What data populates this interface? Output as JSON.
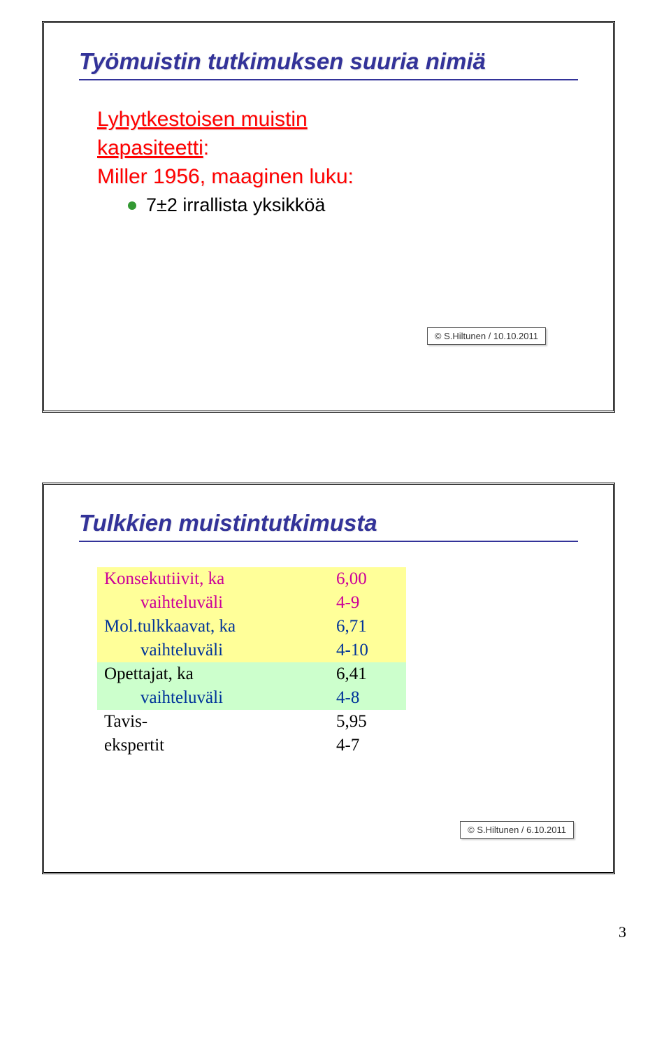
{
  "slide1": {
    "title": "Työmuistin tutkimuksen suuria nimiä",
    "subtitle_part1_underline": "Lyhytkestoisen muistin",
    "subtitle_part2_underline": "kapasiteetti",
    "subtitle_part2_tail": ":",
    "subline": "Miller 1956, maaginen luku:",
    "bullet": "7±2 irrallista yksikköä",
    "footer": "© S.Hiltunen / 10.10.2011"
  },
  "slide2": {
    "title": "Tulkkien muistintutkimusta",
    "rows": [
      {
        "label": "Konsekutiivit, ka",
        "value": "6,00",
        "color": "magenta",
        "bg": "bg-yellow",
        "indent": false
      },
      {
        "label": "vaihteluväli",
        "value": "4-9",
        "color": "magenta",
        "bg": "bg-yellow",
        "indent": true
      },
      {
        "label": "Mol.tulkkaavat, ka",
        "value": "6,71",
        "color": "darkblue",
        "bg": "bg-yellow",
        "indent": false
      },
      {
        "label": "vaihteluväli",
        "value": "4-10",
        "color": "darkblue",
        "bg": "bg-yellow",
        "indent": true
      },
      {
        "label": "Opettajat, ka",
        "value": "6,41",
        "color": "black",
        "bg": "bg-green",
        "indent": false
      },
      {
        "label": "vaihteluväli",
        "value": "4-8",
        "color": "darkblue",
        "bg": "bg-green",
        "indent": true
      },
      {
        "label": "Tavis-",
        "value": "5,95",
        "color": "black",
        "bg": "",
        "indent": false
      },
      {
        "label": "ekspertit",
        "value": "4-7",
        "color": "black",
        "bg": "",
        "indent": false
      }
    ],
    "footer": "© S.Hiltunen / 6.10.2011"
  },
  "page_number": "3",
  "colors": {
    "title": "#333399",
    "subtitle": "#ff0000",
    "bullet_dot": "#339933",
    "magenta": "#cc0099",
    "darkblue": "#003399",
    "bg_yellow": "#ffff99",
    "bg_green": "#ccffcc"
  }
}
